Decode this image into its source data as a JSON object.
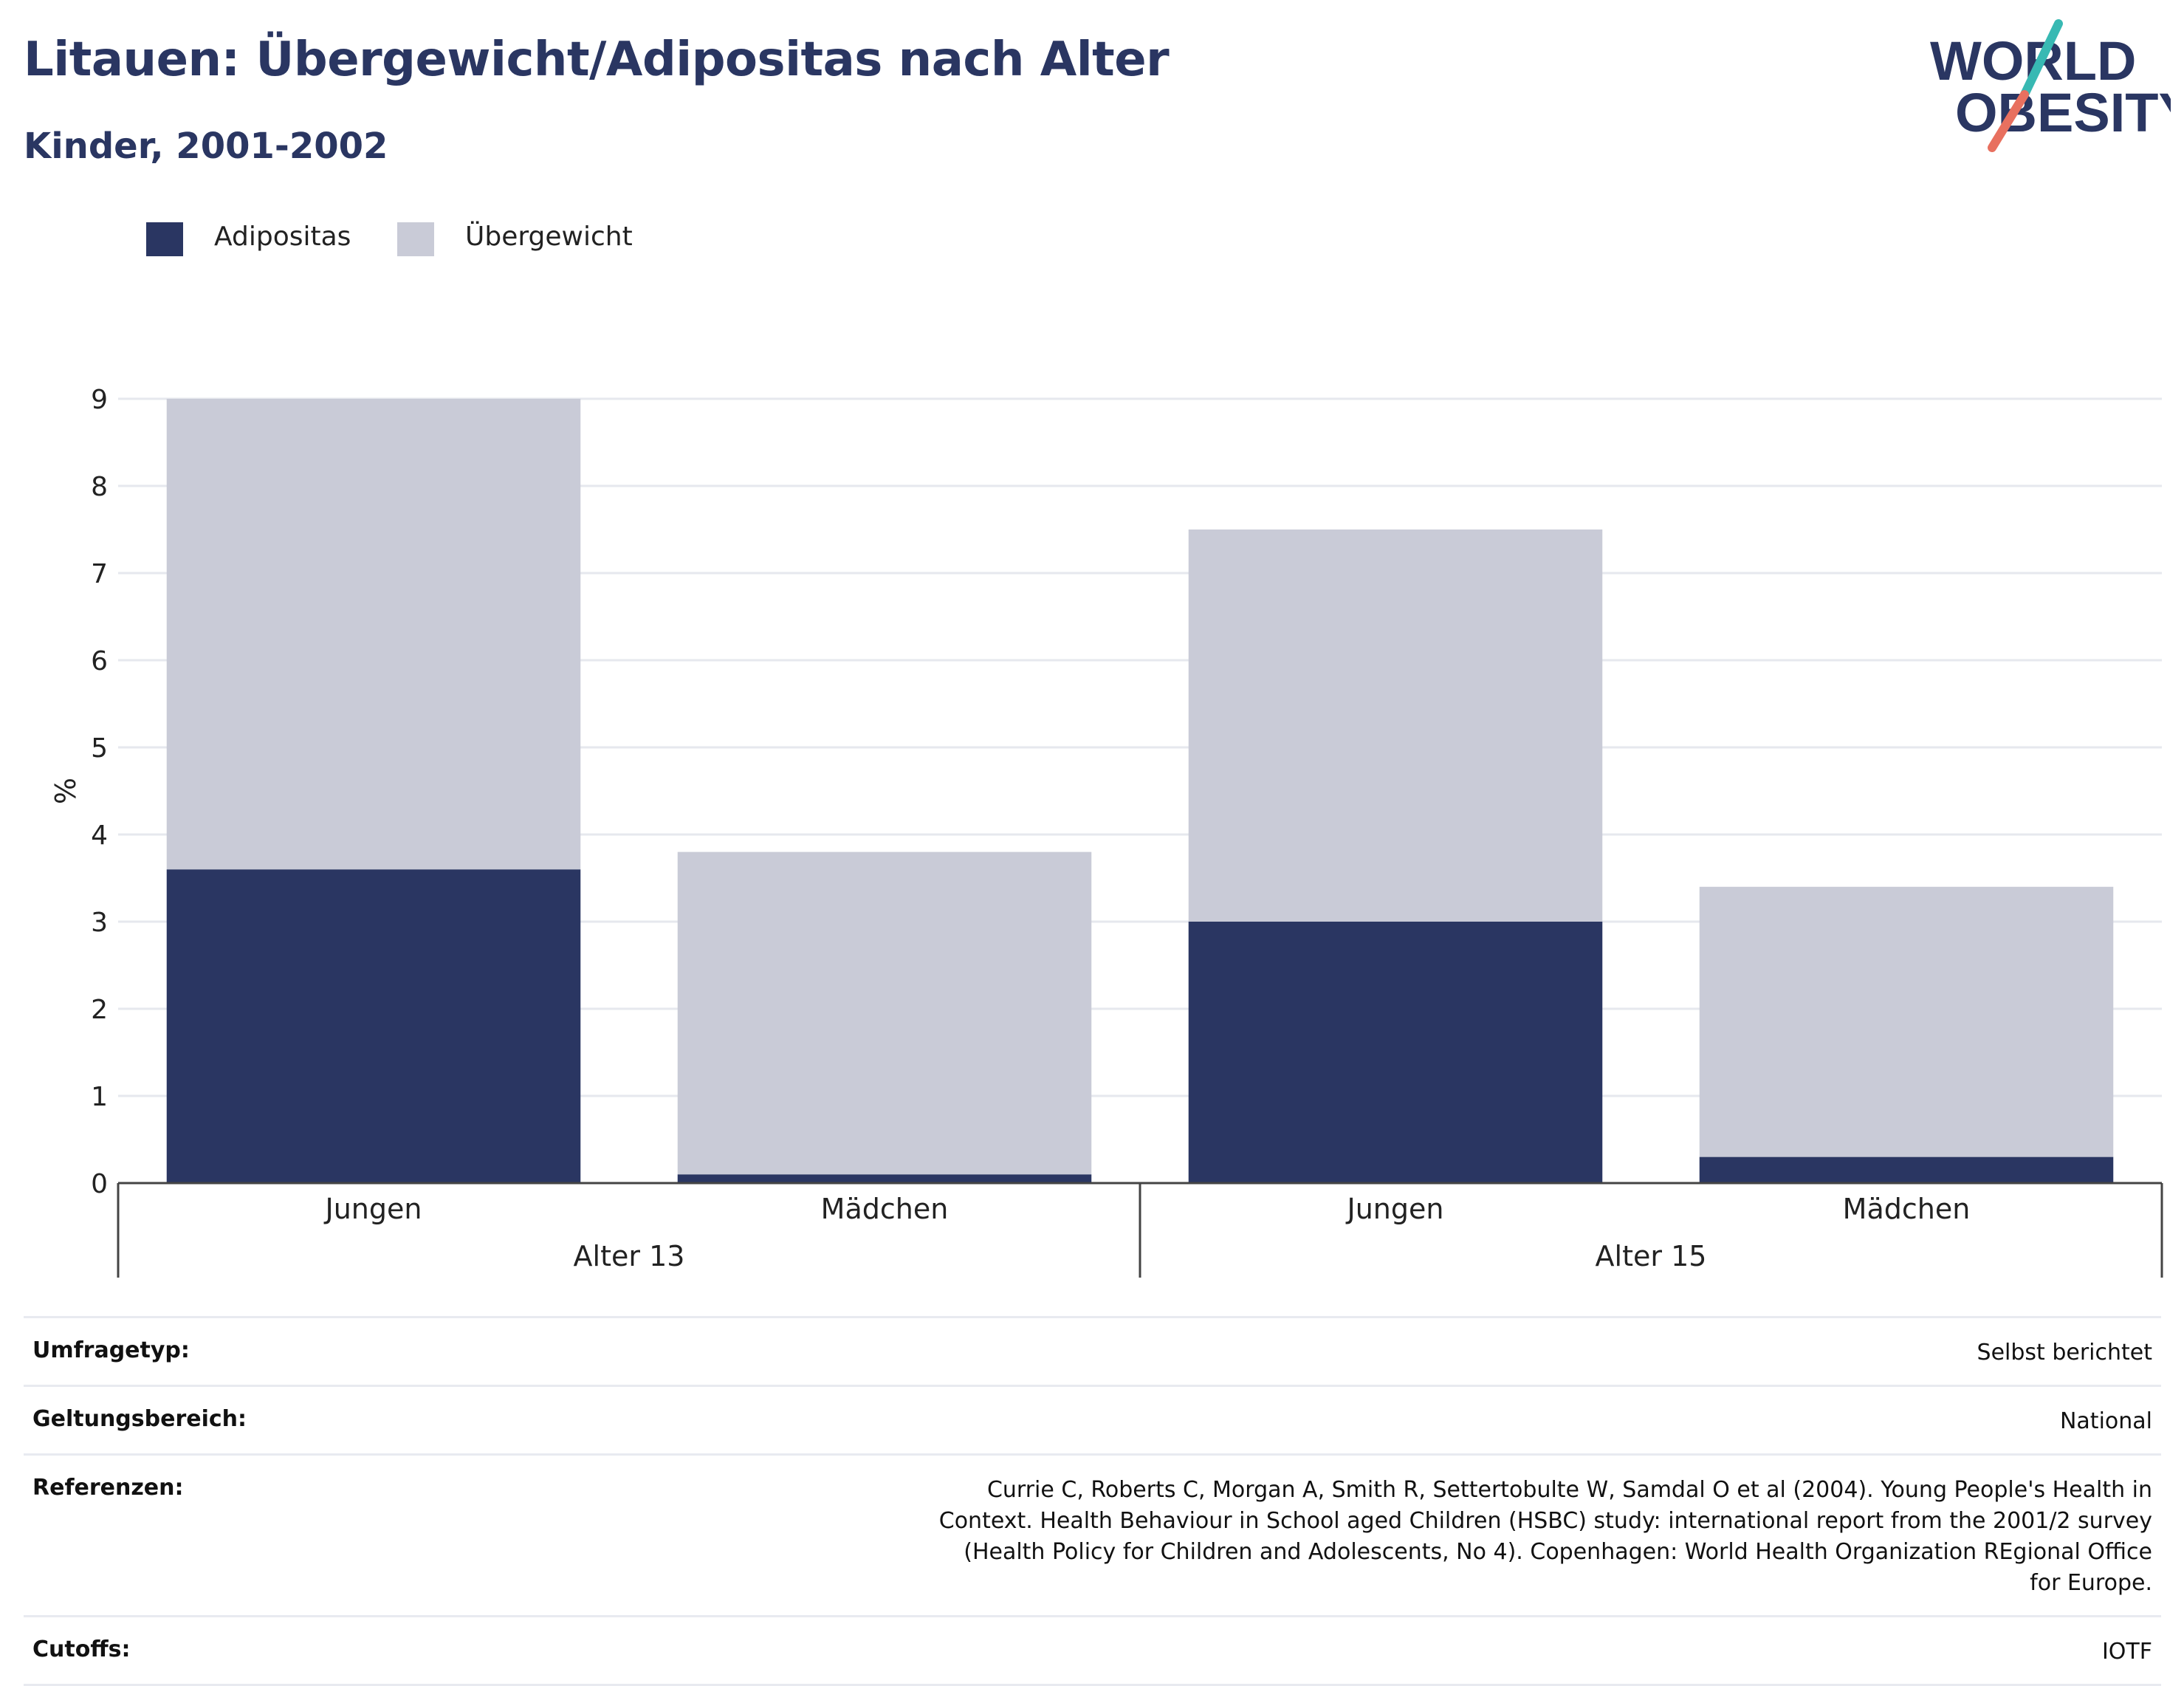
{
  "header": {
    "title": "Litauen: Übergewicht/Adipositas nach Alter",
    "subtitle": "Kinder, 2001-2002"
  },
  "logo": {
    "line1": "WORLD",
    "line2": "OBESITY"
  },
  "colors": {
    "adipositas": "#2a3662",
    "uebergewicht": "#c9cbd7",
    "logo_teal": "#38b9b3",
    "logo_coral": "#e8705f"
  },
  "legend": [
    {
      "label": "Adipositas",
      "color": "#2a3662"
    },
    {
      "label": "Übergewicht",
      "color": "#c9cbd7"
    }
  ],
  "chart_data": {
    "type": "bar",
    "stacked": true,
    "ylabel": "%",
    "ylim": [
      0,
      9
    ],
    "yticks": [
      0,
      1,
      2,
      3,
      4,
      5,
      6,
      7,
      8,
      9
    ],
    "grid": true,
    "legend_position": "top-left",
    "groups": [
      "Alter 13",
      "Alter 15"
    ],
    "categories": [
      "Jungen",
      "Mädchen",
      "Jungen",
      "Mädchen"
    ],
    "category_groups": [
      "Alter 13",
      "Alter 13",
      "Alter 15",
      "Alter 15"
    ],
    "series": [
      {
        "name": "Adipositas",
        "values": [
          3.6,
          0.1,
          3.0,
          0.3
        ]
      },
      {
        "name": "Übergewicht",
        "values": [
          5.4,
          3.7,
          4.5,
          3.1
        ]
      }
    ]
  },
  "info": [
    {
      "label": "Umfragetyp:",
      "value": "Selbst berichtet"
    },
    {
      "label": "Geltungsbereich:",
      "value": "National"
    },
    {
      "label": "Referenzen:",
      "value": "Currie C, Roberts C, Morgan A, Smith R, Settertobulte W, Samdal O et al (2004). Young People's Health in Context. Health Behaviour in School aged Children (HSBC) study: international report from the 2001/2 survey (Health Policy for Children and Adolescents, No 4). Copenhagen: World Health Organization REgional Office for Europe."
    },
    {
      "label": "Cutoffs:",
      "value": "IOTF"
    }
  ]
}
